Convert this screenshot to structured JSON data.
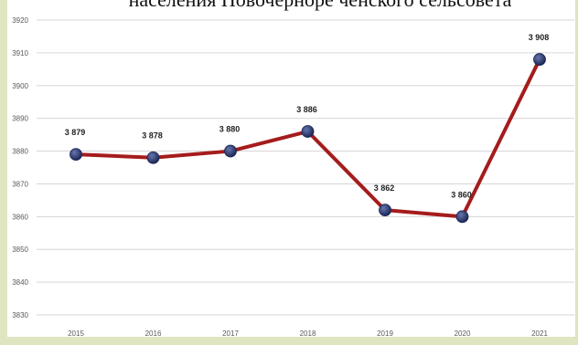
{
  "chart_data": {
    "type": "line",
    "title": "населения Новочерноре ченского сельсовета",
    "xlabel": "",
    "ylabel": "",
    "categories": [
      "2015",
      "2016",
      "2017",
      "2018",
      "2019",
      "2020",
      "2021"
    ],
    "values": [
      3879,
      3878,
      3880,
      3886,
      3862,
      3860,
      3908
    ],
    "data_labels": [
      "3 879",
      "3 878",
      "3 880",
      "3 886",
      "3 862",
      "3 860",
      "3 908"
    ],
    "yticks": [
      3830,
      3840,
      3850,
      3860,
      3870,
      3880,
      3890,
      3900,
      3910,
      3920
    ],
    "ylim": [
      3830,
      3920
    ],
    "grid": true,
    "legend": "none",
    "colors": {
      "frame": "#dfe5c1",
      "plot_background": "#ffffff",
      "gridline": "#d6d6d6",
      "line": "#a51c1c",
      "marker_light": "#6676ad",
      "marker_dark": "#1c2756"
    }
  }
}
